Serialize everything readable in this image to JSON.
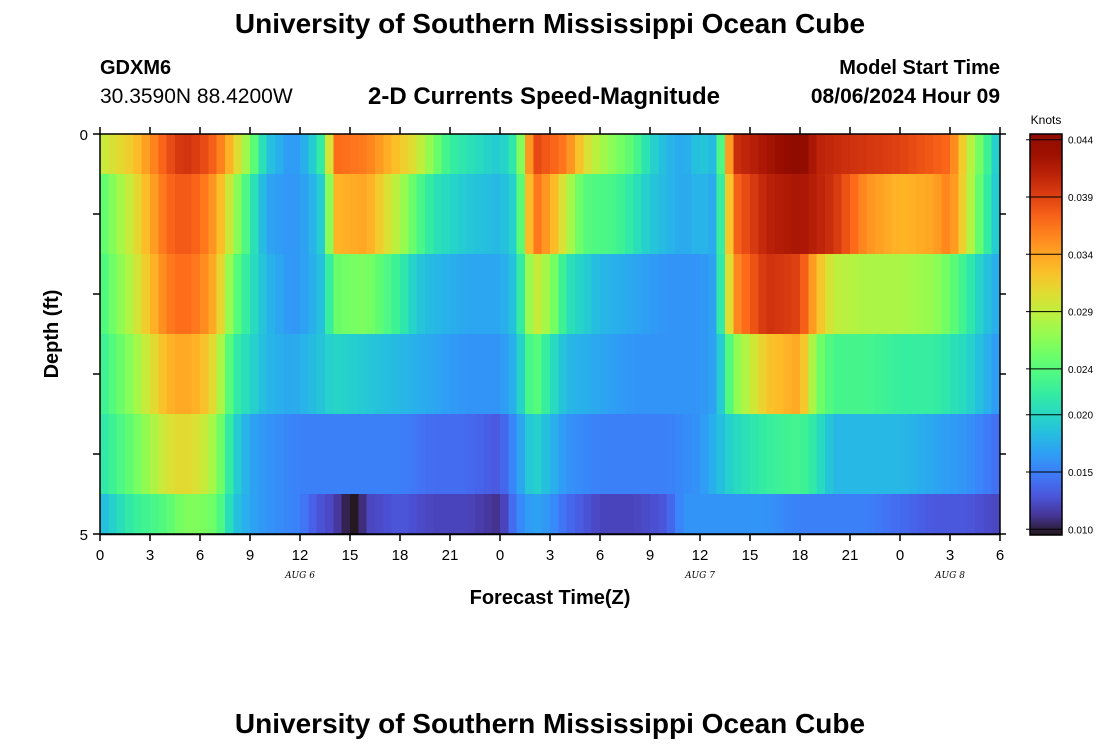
{
  "page": {
    "title": "University of Southern Mississippi Ocean Cube",
    "title_repeat": "University of Southern Mississippi Ocean Cube",
    "station_id": "GDXM6",
    "coordinates": "30.3590N  88.4200W",
    "subtitle": "2-D Currents Speed-Magnitude",
    "model_start_label": "Model Start Time",
    "model_start_value": "08/06/2024 Hour 09"
  },
  "chart_data": {
    "type": "heatmap",
    "title": "2-D Currents Speed-Magnitude",
    "xlabel": "Forecast Time(Z)",
    "ylabel": "Depth (ft)",
    "x_tick_labels": [
      "0",
      "3",
      "6",
      "9",
      "12",
      "15",
      "18",
      "21",
      "0",
      "3",
      "6",
      "9",
      "12",
      "15",
      "18",
      "21",
      "0",
      "3",
      "6"
    ],
    "x_ticks_hours": [
      0,
      3,
      6,
      9,
      12,
      15,
      18,
      21,
      24,
      27,
      30,
      33,
      36,
      39,
      42,
      45,
      48,
      51,
      54
    ],
    "x_range_hours": [
      0,
      54
    ],
    "day_labels": [
      {
        "text": "AUG 6",
        "hour": 12
      },
      {
        "text": "AUG 7",
        "hour": 36
      },
      {
        "text": "AUG 8",
        "hour": 51
      }
    ],
    "y_tick_labels": [
      "0",
      "5"
    ],
    "y_range": [
      0,
      5
    ],
    "colorbar": {
      "unit": "Knots",
      "min": 0.0095,
      "max": 0.0445,
      "tick_labels": [
        "0.010",
        "0.015",
        "0.020",
        "0.024",
        "0.029",
        "0.034",
        "0.039",
        "0.044"
      ],
      "tick_values": [
        0.01,
        0.015,
        0.02,
        0.024,
        0.029,
        0.034,
        0.039,
        0.044
      ],
      "colormap": "turbo"
    },
    "depth_bands_ft": [
      [
        0,
        0.5
      ],
      [
        0.5,
        1.5
      ],
      [
        1.5,
        2.5
      ],
      [
        2.5,
        3.5
      ],
      [
        3.5,
        4.5
      ],
      [
        4.5,
        5
      ]
    ],
    "speed_keyframes": [
      [
        [
          0,
          0.029
        ],
        [
          2,
          0.032
        ],
        [
          4,
          0.038
        ],
        [
          5,
          0.04
        ],
        [
          6,
          0.039
        ],
        [
          7,
          0.037
        ],
        [
          8,
          0.032
        ],
        [
          9,
          0.026
        ],
        [
          10,
          0.019
        ],
        [
          11.5,
          0.016
        ],
        [
          12.5,
          0.018
        ],
        [
          13.5,
          0.023
        ],
        [
          14,
          0.037
        ],
        [
          16,
          0.036
        ],
        [
          18,
          0.032
        ],
        [
          19,
          0.03
        ],
        [
          20,
          0.026
        ],
        [
          21,
          0.022
        ],
        [
          22,
          0.021
        ],
        [
          24,
          0.019
        ],
        [
          25,
          0.022
        ],
        [
          26,
          0.039
        ],
        [
          28,
          0.036
        ],
        [
          29,
          0.031
        ],
        [
          30,
          0.028
        ],
        [
          32,
          0.024
        ],
        [
          33,
          0.02
        ],
        [
          34,
          0.018
        ],
        [
          35,
          0.017
        ],
        [
          36,
          0.019
        ],
        [
          37,
          0.018
        ],
        [
          38,
          0.04
        ],
        [
          40,
          0.042
        ],
        [
          42,
          0.0445
        ],
        [
          43,
          0.041
        ],
        [
          45,
          0.04
        ],
        [
          48,
          0.039
        ],
        [
          51,
          0.037
        ],
        [
          52,
          0.03
        ],
        [
          53,
          0.024
        ],
        [
          54,
          0.018
        ]
      ],
      [
        [
          0,
          0.024
        ],
        [
          2,
          0.03
        ],
        [
          4,
          0.037
        ],
        [
          5,
          0.038
        ],
        [
          6,
          0.037
        ],
        [
          7,
          0.034
        ],
        [
          8,
          0.028
        ],
        [
          9,
          0.022
        ],
        [
          10,
          0.017
        ],
        [
          11.5,
          0.016
        ],
        [
          12.5,
          0.017
        ],
        [
          13.5,
          0.02
        ],
        [
          14,
          0.033
        ],
        [
          16,
          0.034
        ],
        [
          17,
          0.031
        ],
        [
          18,
          0.028
        ],
        [
          19,
          0.024
        ],
        [
          20,
          0.021
        ],
        [
          22,
          0.019
        ],
        [
          24,
          0.018
        ],
        [
          25,
          0.02
        ],
        [
          26,
          0.037
        ],
        [
          27,
          0.034
        ],
        [
          28,
          0.029
        ],
        [
          29,
          0.024
        ],
        [
          31,
          0.023
        ],
        [
          33,
          0.019
        ],
        [
          35,
          0.017
        ],
        [
          36,
          0.018
        ],
        [
          37,
          0.017
        ],
        [
          38,
          0.037
        ],
        [
          40,
          0.041
        ],
        [
          42,
          0.042
        ],
        [
          44,
          0.04
        ],
        [
          46,
          0.035
        ],
        [
          48,
          0.033
        ],
        [
          50,
          0.034
        ],
        [
          51,
          0.036
        ],
        [
          52,
          0.03
        ],
        [
          53,
          0.023
        ],
        [
          54,
          0.018
        ]
      ],
      [
        [
          0,
          0.023
        ],
        [
          2,
          0.029
        ],
        [
          4,
          0.036
        ],
        [
          5,
          0.037
        ],
        [
          6,
          0.036
        ],
        [
          7,
          0.033
        ],
        [
          8,
          0.025
        ],
        [
          9,
          0.021
        ],
        [
          10,
          0.018
        ],
        [
          11.5,
          0.016
        ],
        [
          12.5,
          0.017
        ],
        [
          13.5,
          0.019
        ],
        [
          14,
          0.025
        ],
        [
          16,
          0.026
        ],
        [
          18,
          0.022
        ],
        [
          19,
          0.019
        ],
        [
          20,
          0.018
        ],
        [
          22,
          0.017
        ],
        [
          24,
          0.017
        ],
        [
          25,
          0.019
        ],
        [
          26,
          0.03
        ],
        [
          27,
          0.027
        ],
        [
          28,
          0.021
        ],
        [
          30,
          0.018
        ],
        [
          32,
          0.017
        ],
        [
          34,
          0.016
        ],
        [
          36,
          0.016
        ],
        [
          37,
          0.017
        ],
        [
          38,
          0.035
        ],
        [
          40,
          0.04
        ],
        [
          42,
          0.039
        ],
        [
          43,
          0.033
        ],
        [
          44,
          0.029
        ],
        [
          46,
          0.028
        ],
        [
          48,
          0.028
        ],
        [
          50,
          0.027
        ],
        [
          51,
          0.025
        ],
        [
          52,
          0.022
        ],
        [
          53,
          0.019
        ],
        [
          54,
          0.017
        ]
      ],
      [
        [
          0,
          0.022
        ],
        [
          2,
          0.027
        ],
        [
          4,
          0.033
        ],
        [
          5,
          0.034
        ],
        [
          6,
          0.033
        ],
        [
          7,
          0.03
        ],
        [
          8,
          0.022
        ],
        [
          9,
          0.02
        ],
        [
          10,
          0.018
        ],
        [
          11.5,
          0.017
        ],
        [
          12.5,
          0.018
        ],
        [
          13.5,
          0.019
        ],
        [
          14,
          0.02
        ],
        [
          16,
          0.019
        ],
        [
          18,
          0.018
        ],
        [
          20,
          0.017
        ],
        [
          22,
          0.016
        ],
        [
          24,
          0.016
        ],
        [
          25,
          0.018
        ],
        [
          26,
          0.025
        ],
        [
          27,
          0.021
        ],
        [
          28,
          0.018
        ],
        [
          30,
          0.017
        ],
        [
          32,
          0.016
        ],
        [
          34,
          0.016
        ],
        [
          36,
          0.016
        ],
        [
          37,
          0.017
        ],
        [
          38,
          0.026
        ],
        [
          40,
          0.032
        ],
        [
          42,
          0.034
        ],
        [
          43,
          0.026
        ],
        [
          44,
          0.023
        ],
        [
          46,
          0.023
        ],
        [
          48,
          0.022
        ],
        [
          50,
          0.022
        ],
        [
          51,
          0.021
        ],
        [
          52,
          0.02
        ],
        [
          53,
          0.018
        ],
        [
          54,
          0.016
        ]
      ],
      [
        [
          0,
          0.021
        ],
        [
          2,
          0.025
        ],
        [
          4,
          0.03
        ],
        [
          5,
          0.031
        ],
        [
          6,
          0.03
        ],
        [
          7,
          0.027
        ],
        [
          8,
          0.02
        ],
        [
          9,
          0.017
        ],
        [
          10,
          0.016
        ],
        [
          12,
          0.015
        ],
        [
          14,
          0.015
        ],
        [
          16,
          0.015
        ],
        [
          18,
          0.015
        ],
        [
          20,
          0.014
        ],
        [
          22,
          0.014
        ],
        [
          24,
          0.013
        ],
        [
          25,
          0.016
        ],
        [
          26,
          0.02
        ],
        [
          27,
          0.018
        ],
        [
          28,
          0.016
        ],
        [
          30,
          0.015
        ],
        [
          32,
          0.015
        ],
        [
          34,
          0.015
        ],
        [
          36,
          0.016
        ],
        [
          37,
          0.018
        ],
        [
          38,
          0.02
        ],
        [
          40,
          0.022
        ],
        [
          42,
          0.023
        ],
        [
          43,
          0.021
        ],
        [
          44,
          0.018
        ],
        [
          46,
          0.018
        ],
        [
          48,
          0.018
        ],
        [
          50,
          0.017
        ],
        [
          52,
          0.016
        ],
        [
          53,
          0.015
        ],
        [
          54,
          0.014
        ]
      ],
      [
        [
          0,
          0.018
        ],
        [
          1,
          0.02
        ],
        [
          2,
          0.022
        ],
        [
          4,
          0.024
        ],
        [
          5,
          0.026
        ],
        [
          6,
          0.026
        ],
        [
          7,
          0.025
        ],
        [
          8,
          0.019
        ],
        [
          9,
          0.017
        ],
        [
          10,
          0.016
        ],
        [
          12,
          0.015
        ],
        [
          13,
          0.013
        ],
        [
          14,
          0.012
        ],
        [
          14.8,
          0.01
        ],
        [
          15.2,
          0.0095
        ],
        [
          15.6,
          0.01
        ],
        [
          16,
          0.012
        ],
        [
          18,
          0.013
        ],
        [
          20,
          0.012
        ],
        [
          22,
          0.012
        ],
        [
          24,
          0.011
        ],
        [
          25,
          0.015
        ],
        [
          26,
          0.017
        ],
        [
          27,
          0.016
        ],
        [
          28,
          0.014
        ],
        [
          29,
          0.013
        ],
        [
          30,
          0.012
        ],
        [
          32,
          0.012
        ],
        [
          34,
          0.013
        ],
        [
          35,
          0.016
        ],
        [
          36,
          0.016
        ],
        [
          38,
          0.016
        ],
        [
          40,
          0.016
        ],
        [
          42,
          0.015
        ],
        [
          44,
          0.015
        ],
        [
          46,
          0.015
        ],
        [
          48,
          0.014
        ],
        [
          50,
          0.013
        ],
        [
          52,
          0.013
        ],
        [
          54,
          0.012
        ]
      ]
    ]
  }
}
